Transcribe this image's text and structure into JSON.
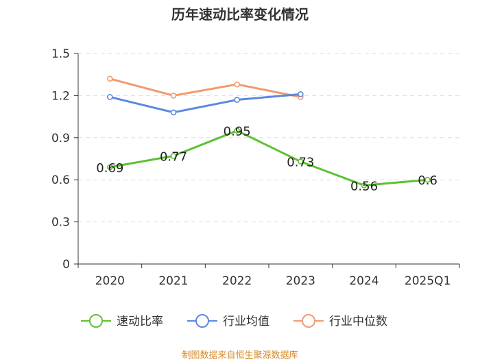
{
  "chart_data": {
    "type": "line",
    "title": "历年速动比率变化情况",
    "categories": [
      "2020",
      "2021",
      "2022",
      "2023",
      "2024",
      "2025Q1"
    ],
    "ylim": [
      0,
      1.5
    ],
    "yticks": [
      "0",
      "0.3",
      "0.6",
      "0.9",
      "1.2",
      "1.5"
    ],
    "ytick_values": [
      0,
      0.3,
      0.6,
      0.9,
      1.2,
      1.5
    ],
    "grid": true,
    "legend_position": "bottom",
    "series": [
      {
        "name": "速动比率",
        "color": "#5cc22f",
        "values": [
          0.69,
          0.77,
          0.95,
          0.73,
          0.56,
          0.6
        ],
        "labels": [
          "0.69",
          "0.77",
          "0.95",
          "0.73",
          "0.56",
          "0.6"
        ]
      },
      {
        "name": "行业均值",
        "color": "#5b88e0",
        "values": [
          1.19,
          1.08,
          1.17,
          1.21,
          null,
          null
        ]
      },
      {
        "name": "行业中位数",
        "color": "#f39a6e",
        "values": [
          1.32,
          1.2,
          1.28,
          1.19,
          null,
          null
        ]
      }
    ],
    "source": "制图数据来自恒生聚源数据库"
  }
}
